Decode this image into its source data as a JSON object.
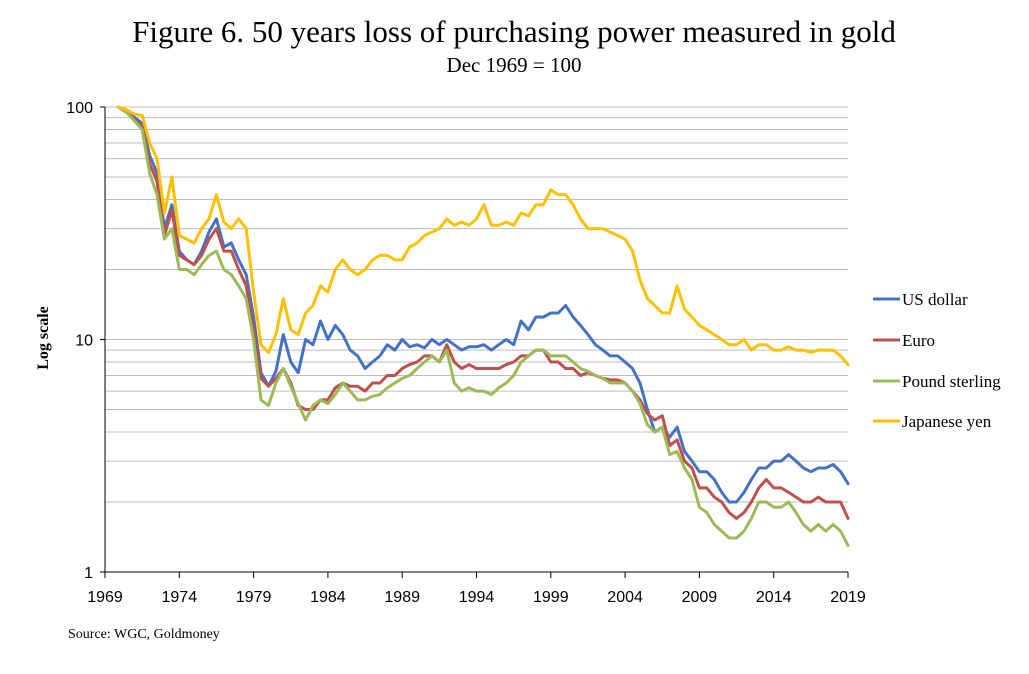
{
  "chart_data": {
    "type": "line",
    "title": "Figure 6. 50 years loss of purchasing power measured in gold",
    "subtitle": "Dec 1969 = 100",
    "ylabel": "Log scale",
    "xlabel": "",
    "y_scale": "log",
    "ylim": [
      1,
      100
    ],
    "xlim": [
      1969,
      2019
    ],
    "y_ticks": [
      {
        "value": 1,
        "label": "1"
      },
      {
        "value": 10,
        "label": "10"
      },
      {
        "value": 100,
        "label": "100"
      }
    ],
    "x_ticks": [
      "1969",
      "1974",
      "1979",
      "1984",
      "1989",
      "1994",
      "1999",
      "2004",
      "2009",
      "2014",
      "2019"
    ],
    "grid": true,
    "legend_position": "right",
    "source": "Source: WGC, Goldmoney",
    "series": [
      {
        "name": "US dollar",
        "color": "#4472C4",
        "x": [
          1969.9,
          1970.5,
          1971.0,
          1971.5,
          1972.0,
          1972.5,
          1973.0,
          1973.5,
          1974.0,
          1974.5,
          1975.0,
          1975.5,
          1976.0,
          1976.5,
          1977.0,
          1977.5,
          1978.0,
          1978.5,
          1979.0,
          1979.5,
          1980.0,
          1980.5,
          1981.0,
          1981.5,
          1982.0,
          1982.5,
          1983.0,
          1983.5,
          1984.0,
          1984.5,
          1985.0,
          1985.5,
          1986.0,
          1986.5,
          1987.0,
          1987.5,
          1988.0,
          1988.5,
          1989.0,
          1989.5,
          1990.0,
          1990.5,
          1991.0,
          1991.5,
          1992.0,
          1992.5,
          1993.0,
          1993.5,
          1994.0,
          1994.5,
          1995.0,
          1995.5,
          1996.0,
          1996.5,
          1997.0,
          1997.5,
          1998.0,
          1998.5,
          1999.0,
          1999.5,
          2000.0,
          2000.5,
          2001.0,
          2001.5,
          2002.0,
          2002.5,
          2003.0,
          2003.5,
          2004.0,
          2004.5,
          2005.0,
          2005.5,
          2006.0,
          2006.5,
          2007.0,
          2007.5,
          2008.0,
          2008.5,
          2009.0,
          2009.5,
          2010.0,
          2010.5,
          2011.0,
          2011.5,
          2012.0,
          2012.5,
          2013.0,
          2013.5,
          2014.0,
          2014.5,
          2015.0,
          2015.5,
          2016.0,
          2016.5,
          2017.0,
          2017.5,
          2018.0,
          2018.5,
          2019.0
        ],
        "values": [
          100,
          96,
          90,
          85,
          62,
          52,
          30,
          38,
          24,
          22,
          21,
          24,
          29,
          33,
          25,
          26,
          22,
          19,
          12.5,
          7.2,
          6.3,
          7.3,
          10.5,
          8.0,
          7.2,
          10.0,
          9.5,
          12.0,
          10.0,
          11.5,
          10.5,
          9.0,
          8.5,
          7.5,
          8.0,
          8.5,
          9.5,
          9.0,
          10.0,
          9.3,
          9.5,
          9.2,
          10.0,
          9.5,
          10.0,
          9.5,
          9.0,
          9.3,
          9.3,
          9.5,
          9.0,
          9.5,
          10.0,
          9.5,
          12.0,
          11.0,
          12.5,
          12.5,
          13.0,
          13.0,
          14.0,
          12.5,
          11.5,
          10.5,
          9.5,
          9.0,
          8.5,
          8.5,
          8.0,
          7.5,
          6.5,
          5.0,
          4.0,
          4.2,
          3.8,
          4.2,
          3.3,
          3.0,
          2.7,
          2.7,
          2.5,
          2.2,
          2.0,
          2.0,
          2.2,
          2.5,
          2.8,
          2.8,
          3.0,
          3.0,
          3.2,
          3.0,
          2.8,
          2.7,
          2.8,
          2.8,
          2.9,
          2.7,
          2.4
        ]
      },
      {
        "name": "Euro",
        "color": "#C0504D",
        "x": [
          1969.9,
          1970.5,
          1971.0,
          1971.5,
          1972.0,
          1972.5,
          1973.0,
          1973.5,
          1974.0,
          1974.5,
          1975.0,
          1975.5,
          1976.0,
          1976.5,
          1977.0,
          1977.5,
          1978.0,
          1978.5,
          1979.0,
          1979.5,
          1980.0,
          1980.5,
          1981.0,
          1981.5,
          1982.0,
          1982.5,
          1983.0,
          1983.5,
          1984.0,
          1984.5,
          1985.0,
          1985.5,
          1986.0,
          1986.5,
          1987.0,
          1987.5,
          1988.0,
          1988.5,
          1989.0,
          1989.5,
          1990.0,
          1990.5,
          1991.0,
          1991.5,
          1992.0,
          1992.5,
          1993.0,
          1993.5,
          1994.0,
          1994.5,
          1995.0,
          1995.5,
          1996.0,
          1996.5,
          1997.0,
          1997.5,
          1998.0,
          1998.5,
          1999.0,
          1999.5,
          2000.0,
          2000.5,
          2001.0,
          2001.5,
          2002.0,
          2002.5,
          2003.0,
          2003.5,
          2004.0,
          2004.5,
          2005.0,
          2005.5,
          2006.0,
          2006.5,
          2007.0,
          2007.5,
          2008.0,
          2008.5,
          2009.0,
          2009.5,
          2010.0,
          2010.5,
          2011.0,
          2011.5,
          2012.0,
          2012.5,
          2013.0,
          2013.5,
          2014.0,
          2014.5,
          2015.0,
          2015.5,
          2016.0,
          2016.5,
          2017.0,
          2017.5,
          2018.0,
          2018.5,
          2019.0
        ],
        "values": [
          100,
          95,
          88,
          82,
          57,
          48,
          28,
          36,
          23,
          22,
          21,
          23,
          27,
          30,
          24,
          24,
          20,
          17,
          11,
          6.8,
          6.3,
          6.8,
          7.5,
          6.5,
          5.2,
          5.0,
          5.0,
          5.5,
          5.5,
          6.2,
          6.5,
          6.3,
          6.3,
          6.0,
          6.5,
          6.5,
          7.0,
          7.0,
          7.5,
          7.8,
          8.0,
          8.5,
          8.5,
          8.0,
          9.5,
          8.0,
          7.5,
          7.8,
          7.5,
          7.5,
          7.5,
          7.5,
          7.8,
          8.0,
          8.5,
          8.5,
          9.0,
          9.0,
          8.0,
          8.0,
          7.5,
          7.5,
          7.0,
          7.2,
          7.0,
          6.8,
          6.7,
          6.7,
          6.5,
          6.0,
          5.5,
          4.8,
          4.5,
          4.7,
          3.5,
          3.7,
          3.0,
          2.8,
          2.3,
          2.3,
          2.1,
          2.0,
          1.8,
          1.7,
          1.8,
          2.0,
          2.3,
          2.5,
          2.3,
          2.3,
          2.2,
          2.1,
          2.0,
          2.0,
          2.1,
          2.0,
          2.0,
          2.0,
          1.7
        ]
      },
      {
        "name": "Pound sterling",
        "color": "#9BBB59",
        "x": [
          1969.9,
          1970.5,
          1971.0,
          1971.5,
          1972.0,
          1972.5,
          1973.0,
          1973.5,
          1974.0,
          1974.5,
          1975.0,
          1975.5,
          1976.0,
          1976.5,
          1977.0,
          1977.5,
          1978.0,
          1978.5,
          1979.0,
          1979.5,
          1980.0,
          1980.5,
          1981.0,
          1981.5,
          1982.0,
          1982.5,
          1983.0,
          1983.5,
          1984.0,
          1984.5,
          1985.0,
          1985.5,
          1986.0,
          1986.5,
          1987.0,
          1987.5,
          1988.0,
          1988.5,
          1989.0,
          1989.5,
          1990.0,
          1990.5,
          1991.0,
          1991.5,
          1992.0,
          1992.5,
          1993.0,
          1993.5,
          1994.0,
          1994.5,
          1995.0,
          1995.5,
          1996.0,
          1996.5,
          1997.0,
          1997.5,
          1998.0,
          1998.5,
          1999.0,
          1999.5,
          2000.0,
          2000.5,
          2001.0,
          2001.5,
          2002.0,
          2002.5,
          2003.0,
          2003.5,
          2004.0,
          2004.5,
          2005.0,
          2005.5,
          2006.0,
          2006.5,
          2007.0,
          2007.5,
          2008.0,
          2008.5,
          2009.0,
          2009.5,
          2010.0,
          2010.5,
          2011.0,
          2011.5,
          2012.0,
          2012.5,
          2013.0,
          2013.5,
          2014.0,
          2014.5,
          2015.0,
          2015.5,
          2016.0,
          2016.5,
          2017.0,
          2017.5,
          2018.0,
          2018.5,
          2019.0
        ],
        "values": [
          100,
          94,
          87,
          80,
          52,
          42,
          27,
          30,
          20,
          20,
          19,
          21,
          23,
          24,
          20,
          19,
          17,
          15,
          10,
          5.5,
          5.2,
          6.5,
          7.5,
          6.3,
          5.3,
          4.5,
          5.2,
          5.5,
          5.3,
          5.8,
          6.5,
          6.0,
          5.5,
          5.5,
          5.7,
          5.8,
          6.2,
          6.5,
          6.8,
          7.0,
          7.5,
          8.0,
          8.5,
          8.0,
          9.0,
          6.5,
          6.0,
          6.2,
          6.0,
          6.0,
          5.8,
          6.2,
          6.5,
          7.0,
          8.0,
          8.5,
          9.0,
          9.0,
          8.5,
          8.5,
          8.5,
          8.0,
          7.5,
          7.3,
          7.0,
          6.8,
          6.5,
          6.5,
          6.5,
          6.0,
          5.3,
          4.3,
          4.0,
          4.2,
          3.2,
          3.3,
          2.8,
          2.5,
          1.9,
          1.8,
          1.6,
          1.5,
          1.4,
          1.4,
          1.5,
          1.7,
          2.0,
          2.0,
          1.9,
          1.9,
          2.0,
          1.8,
          1.6,
          1.5,
          1.6,
          1.5,
          1.6,
          1.5,
          1.3
        ]
      },
      {
        "name": "Japanese yen",
        "color": "#FFC000",
        "x": [
          1969.9,
          1970.5,
          1971.0,
          1971.5,
          1972.0,
          1972.5,
          1973.0,
          1973.5,
          1974.0,
          1974.5,
          1975.0,
          1975.5,
          1976.0,
          1976.5,
          1977.0,
          1977.5,
          1978.0,
          1978.5,
          1979.0,
          1979.5,
          1980.0,
          1980.5,
          1981.0,
          1981.5,
          1982.0,
          1982.5,
          1983.0,
          1983.5,
          1984.0,
          1984.5,
          1985.0,
          1985.5,
          1986.0,
          1986.5,
          1987.0,
          1987.5,
          1988.0,
          1988.5,
          1989.0,
          1989.5,
          1990.0,
          1990.5,
          1991.0,
          1991.5,
          1992.0,
          1992.5,
          1993.0,
          1993.5,
          1994.0,
          1994.5,
          1995.0,
          1995.5,
          1996.0,
          1996.5,
          1997.0,
          1997.5,
          1998.0,
          1998.5,
          1999.0,
          1999.5,
          2000.0,
          2000.5,
          2001.0,
          2001.5,
          2002.0,
          2002.5,
          2003.0,
          2003.5,
          2004.0,
          2004.5,
          2005.0,
          2005.5,
          2006.0,
          2006.5,
          2007.0,
          2007.5,
          2008.0,
          2008.5,
          2009.0,
          2009.5,
          2010.0,
          2010.5,
          2011.0,
          2011.5,
          2012.0,
          2012.5,
          2013.0,
          2013.5,
          2014.0,
          2014.5,
          2015.0,
          2015.5,
          2016.0,
          2016.5,
          2017.0,
          2017.5,
          2018.0,
          2018.5,
          2019.0
        ],
        "values": [
          100,
          97,
          93,
          92,
          70,
          60,
          35,
          50,
          28,
          27,
          26,
          30,
          33,
          42,
          32,
          30,
          33,
          30,
          16,
          9.5,
          8.8,
          10.5,
          15.0,
          11.0,
          10.5,
          13.0,
          14.0,
          17.0,
          16.0,
          20.0,
          22.0,
          20.0,
          19.0,
          20.0,
          22.0,
          23.0,
          23.0,
          22.0,
          22.0,
          25.0,
          26.0,
          28.0,
          29.0,
          30.0,
          33.0,
          31.0,
          32.0,
          31.0,
          33.0,
          38.0,
          31.0,
          31.0,
          32.0,
          31.0,
          35.0,
          34.0,
          38.0,
          38.0,
          44.0,
          42.0,
          42.0,
          38.0,
          33.0,
          30.0,
          30.0,
          30.0,
          29.0,
          28.0,
          27.0,
          24.0,
          18.0,
          15.0,
          14.0,
          13.0,
          13.0,
          17.0,
          13.5,
          12.5,
          11.5,
          11.0,
          10.5,
          10.0,
          9.5,
          9.5,
          10.0,
          9.0,
          9.5,
          9.5,
          9.0,
          9.0,
          9.3,
          9.0,
          9.0,
          8.8,
          9.0,
          9.0,
          9.0,
          8.5,
          7.8
        ]
      }
    ]
  }
}
